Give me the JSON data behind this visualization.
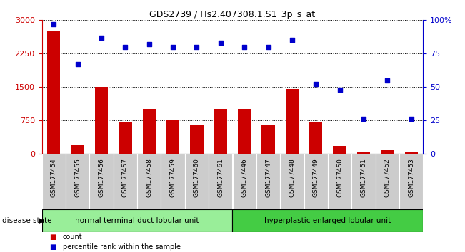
{
  "title": "GDS2739 / Hs2.407308.1.S1_3p_s_at",
  "categories": [
    "GSM177454",
    "GSM177455",
    "GSM177456",
    "GSM177457",
    "GSM177458",
    "GSM177459",
    "GSM177460",
    "GSM177461",
    "GSM177446",
    "GSM177447",
    "GSM177448",
    "GSM177449",
    "GSM177450",
    "GSM177451",
    "GSM177452",
    "GSM177453"
  ],
  "counts": [
    2750,
    200,
    1500,
    700,
    1000,
    750,
    650,
    1000,
    1000,
    650,
    1450,
    700,
    175,
    50,
    75,
    30
  ],
  "percentiles": [
    97,
    67,
    87,
    80,
    82,
    80,
    80,
    83,
    80,
    80,
    85,
    52,
    48,
    26,
    55,
    26
  ],
  "ylim_left": [
    0,
    3000
  ],
  "ylim_right": [
    0,
    100
  ],
  "yticks_left": [
    0,
    750,
    1500,
    2250,
    3000
  ],
  "yticks_right": [
    0,
    25,
    50,
    75,
    100
  ],
  "bar_color": "#cc0000",
  "dot_color": "#0000cc",
  "group1_label": "normal terminal duct lobular unit",
  "group2_label": "hyperplastic enlarged lobular unit",
  "group1_color": "#99ee99",
  "group2_color": "#44cc44",
  "group1_count": 8,
  "group2_count": 8,
  "legend_count_label": "count",
  "legend_percentile_label": "percentile rank within the sample",
  "disease_state_label": "disease state",
  "tick_bg_color": "#cccccc",
  "background_color": "#ffffff",
  "grid_color": "#000000",
  "right_axis_color": "#0000cc",
  "left_axis_color": "#cc0000"
}
